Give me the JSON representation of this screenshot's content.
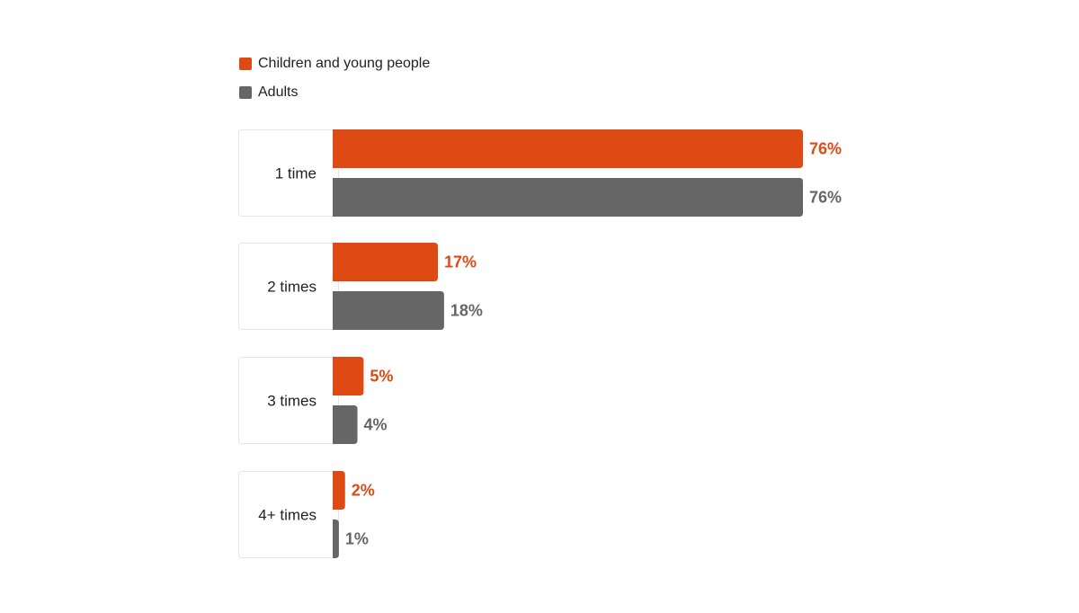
{
  "chart_data": {
    "type": "bar",
    "orientation": "horizontal",
    "categories": [
      "1 time",
      "2 times",
      "3 times",
      "4+ times"
    ],
    "series": [
      {
        "name": "Children and young people",
        "values": [
          76,
          17,
          5,
          2
        ],
        "color": "#DD4A14"
      },
      {
        "name": "Adults",
        "values": [
          76,
          18,
          4,
          1
        ],
        "color": "#666666"
      }
    ],
    "value_labels": [
      [
        "76%",
        "17%",
        "5%",
        "2%"
      ],
      [
        "76%",
        "18%",
        "4%",
        "1%"
      ]
    ],
    "unit": "%",
    "xlim": [
      0,
      76
    ],
    "grid": false,
    "legend_position": "top-left"
  }
}
